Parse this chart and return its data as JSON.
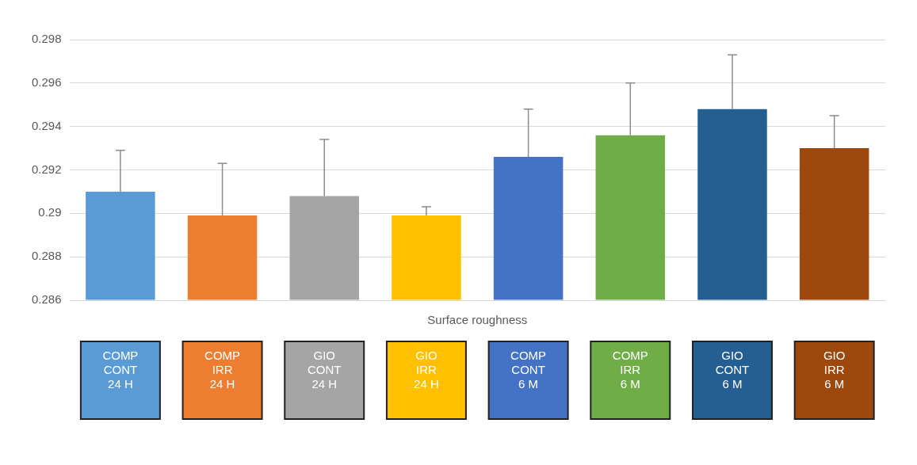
{
  "chart_data": {
    "type": "bar",
    "xlabel": "Surface roughness",
    "categories": [
      "COMP CONT 24 H",
      "COMP IRR 24 H",
      "GIO CONT 24 H",
      "GIO IRR 24 H",
      "COMP CONT 6 M",
      "COMP IRR 6 M",
      "GIO CONT 6 M",
      "GIO IRR 6 M"
    ],
    "values": [
      0.291,
      0.2899,
      0.2908,
      0.2899,
      0.2926,
      0.2936,
      0.2948,
      0.293
    ],
    "errors": [
      [
        0.291,
        0.2929
      ],
      [
        0.2899,
        0.2923
      ],
      [
        0.2908,
        0.2934
      ],
      [
        0.2899,
        0.2903
      ],
      [
        0.2926,
        0.2948
      ],
      [
        0.2936,
        0.296
      ],
      [
        0.2948,
        0.2973
      ],
      [
        0.293,
        0.2945
      ]
    ],
    "colors": [
      "#5b9bd5",
      "#ed7d31",
      "#a5a5a5",
      "#ffc000",
      "#4472c4",
      "#70ad47",
      "#255e91",
      "#9e480e"
    ],
    "ylim": [
      0.286,
      0.298
    ],
    "yticks": [
      0.286,
      0.288,
      0.29,
      0.292,
      0.294,
      0.296,
      0.298
    ],
    "grid": "y"
  }
}
